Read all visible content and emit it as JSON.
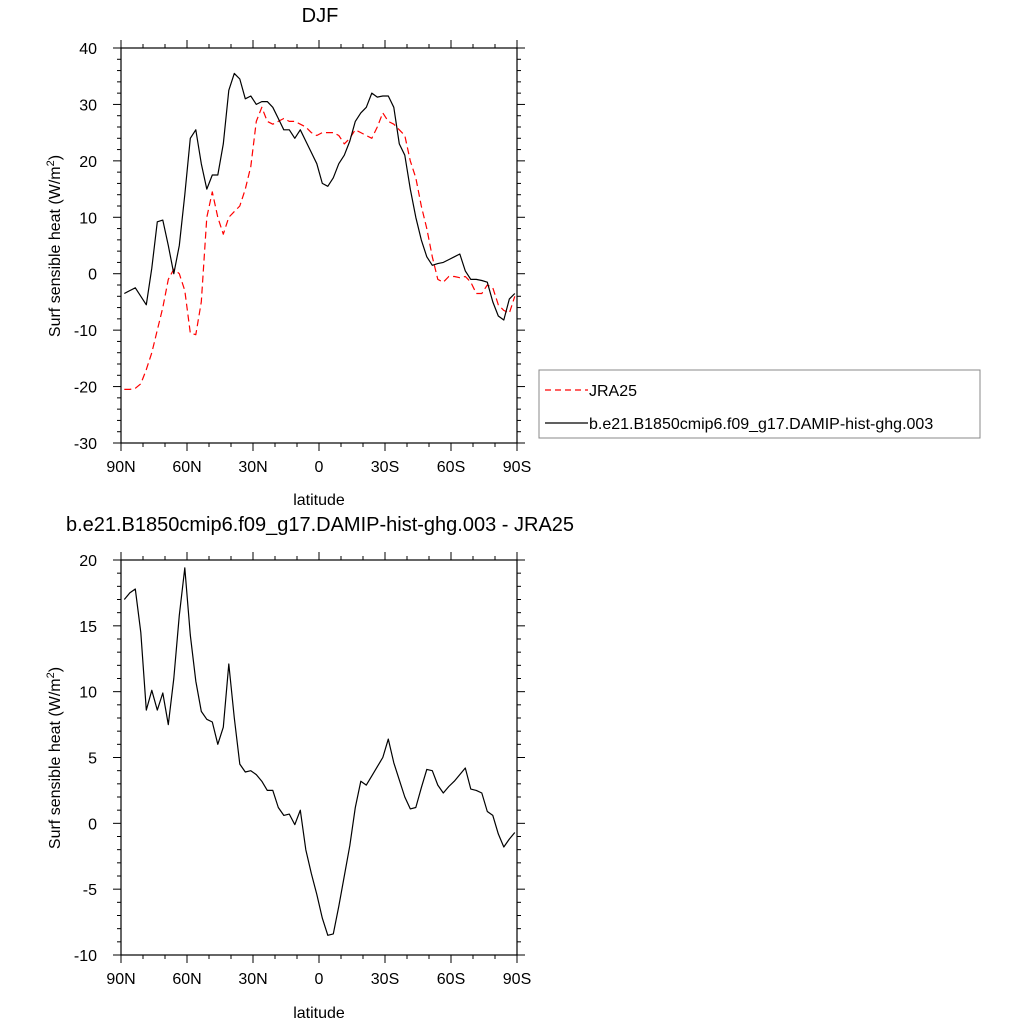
{
  "chart_data": [
    {
      "type": "line",
      "title": "DJF",
      "xlabel": "latitude",
      "ylabel": "Surf sensible heat (W/m",
      "ylabel_sup": "2",
      "ylabel_end": ")",
      "xlim": [
        90,
        -90
      ],
      "ylim": [
        -30,
        40
      ],
      "xticks": [
        90,
        60,
        30,
        0,
        -30,
        -60,
        -90
      ],
      "xtick_labels": [
        "90N",
        "60N",
        "30N",
        "0",
        "30S",
        "60S",
        "90S"
      ],
      "yticks": [
        -30,
        -20,
        -10,
        0,
        10,
        20,
        30,
        40
      ],
      "ytick_labels": [
        "-30",
        "-20",
        "-10",
        "0",
        "10",
        "20",
        "30",
        "40"
      ],
      "grid": false,
      "legend_position": "outside-right",
      "series": [
        {
          "name": "JRA25",
          "color": "#ff0000",
          "dash": "dashed",
          "x": [
            88.5,
            86,
            83.5,
            81,
            78.5,
            76,
            73.5,
            71,
            68.5,
            66,
            63.5,
            61,
            58.5,
            56,
            53.5,
            51,
            48.5,
            46,
            43.5,
            41,
            38.5,
            36,
            33.5,
            31,
            28.5,
            26,
            23.5,
            21,
            18.5,
            16,
            13.5,
            11,
            8.5,
            6,
            3.5,
            1,
            -1.5,
            -4,
            -6.5,
            -9,
            -11.5,
            -14,
            -16.5,
            -19,
            -21.5,
            -24,
            -26.5,
            -29,
            -31.5,
            -34,
            -36.5,
            -39,
            -41.5,
            -44,
            -46.5,
            -49,
            -51.5,
            -54,
            -56.5,
            -59,
            -61.5,
            -64,
            -66.5,
            -69,
            -71.5,
            -74,
            -76.5,
            -79,
            -81.5,
            -84,
            -86.5,
            -89
          ],
          "y": [
            -20.5,
            -20.5,
            -20.3,
            -19.5,
            -17,
            -14,
            -10,
            -6,
            -1,
            0.8,
            0,
            -3,
            -10.5,
            -10.8,
            -5,
            10,
            14.5,
            10,
            7,
            10,
            11,
            12,
            15,
            19,
            27,
            29.5,
            27,
            26.5,
            27,
            27.5,
            27,
            27,
            26.5,
            26,
            25,
            24.5,
            25,
            25,
            25,
            24.5,
            23,
            24,
            25.5,
            25,
            24.5,
            24,
            26,
            28.5,
            27,
            26.5,
            25.5,
            24.5,
            20,
            17,
            12,
            8,
            3,
            -1,
            -1.5,
            -0.5,
            -0.5,
            -0.7,
            -0.5,
            -1.5,
            -3.5,
            -3.5,
            -2,
            -2.5,
            -5.5,
            -6.5,
            -7,
            -4
          ]
        },
        {
          "name": "b.e21.B1850cmip6.f09_g17.DAMIP-hist-ghg.003",
          "color": "#000000",
          "dash": "solid",
          "x": [
            88.5,
            86,
            83.5,
            81,
            78.5,
            76,
            73.5,
            71,
            68.5,
            66,
            63.5,
            61,
            58.5,
            56,
            53.5,
            51,
            48.5,
            46,
            43.5,
            41,
            38.5,
            36,
            33.5,
            31,
            28.5,
            26,
            23.5,
            21,
            18.5,
            16,
            13.5,
            11,
            8.5,
            6,
            3.5,
            1,
            -1.5,
            -4,
            -6.5,
            -9,
            -11.5,
            -14,
            -16.5,
            -19,
            -21.5,
            -24,
            -26.5,
            -29,
            -31.5,
            -34,
            -36.5,
            -39,
            -41.5,
            -44,
            -46.5,
            -49,
            -51.5,
            -54,
            -56.5,
            -59,
            -61.5,
            -64,
            -66.5,
            -69,
            -71.5,
            -74,
            -76.5,
            -79,
            -81.5,
            -84,
            -86.5,
            -89
          ],
          "y": [
            -3.5,
            -3,
            -2.5,
            -4,
            -5.5,
            1,
            9.2,
            9.5,
            5,
            0,
            5,
            14,
            24,
            25.5,
            19.5,
            15,
            17.5,
            17.5,
            23,
            32.5,
            35.5,
            34.5,
            31,
            31.5,
            30,
            30.5,
            30.5,
            29.5,
            27.5,
            25.5,
            25.5,
            24,
            25.5,
            23.5,
            21.5,
            19.5,
            16,
            15.5,
            17,
            19.5,
            21,
            23.5,
            27,
            28.5,
            29.5,
            32,
            31.3,
            31.5,
            31.5,
            29.5,
            23,
            21,
            15,
            10,
            6,
            3,
            1.5,
            1.8,
            2,
            2.5,
            3,
            3.5,
            0.5,
            -1,
            -1,
            -1.2,
            -1.5,
            -5,
            -7.5,
            -8.2,
            -4.5,
            -3.5
          ]
        }
      ]
    },
    {
      "type": "line",
      "title": "b.e21.B1850cmip6.f09_g17.DAMIP-hist-ghg.003 - JRA25",
      "xlabel": "latitude",
      "ylabel": "Surf sensible heat (W/m",
      "ylabel_sup": "2",
      "ylabel_end": ")",
      "xlim": [
        90,
        -90
      ],
      "ylim": [
        -10,
        20
      ],
      "xticks": [
        90,
        60,
        30,
        0,
        -30,
        -60,
        -90
      ],
      "xtick_labels": [
        "90N",
        "60N",
        "30N",
        "0",
        "30S",
        "60S",
        "90S"
      ],
      "yticks": [
        -10,
        -5,
        0,
        5,
        10,
        15,
        20
      ],
      "ytick_labels": [
        "-10",
        "-5",
        "0",
        "5",
        "10",
        "15",
        "20"
      ],
      "grid": false,
      "series": [
        {
          "name": "",
          "color": "#000000",
          "dash": "solid",
          "x": [
            88.5,
            86,
            83.5,
            81,
            78.5,
            76,
            73.5,
            71,
            68.5,
            66,
            63.5,
            61,
            58.5,
            56,
            53.5,
            51,
            48.5,
            46,
            43.5,
            41,
            38.5,
            36,
            33.5,
            31,
            28.5,
            26,
            23.5,
            21,
            18.5,
            16,
            13.5,
            11,
            8.5,
            6,
            3.5,
            1,
            -1.5,
            -4,
            -6.5,
            -9,
            -11.5,
            -14,
            -16.5,
            -19,
            -21.5,
            -24,
            -26.5,
            -29,
            -31.5,
            -34,
            -36.5,
            -39,
            -41.5,
            -44,
            -46.5,
            -49,
            -51.5,
            -54,
            -56.5,
            -59,
            -61.5,
            -64,
            -66.5,
            -69,
            -71.5,
            -74,
            -76.5,
            -79,
            -81.5,
            -84,
            -86.5,
            -89
          ],
          "y": [
            17,
            17.5,
            17.8,
            14.5,
            8.6,
            10.1,
            8.6,
            9.9,
            7.5,
            11,
            15.8,
            19.4,
            14.3,
            10.8,
            8.5,
            7.9,
            7.7,
            6,
            7.3,
            12.1,
            8,
            4.5,
            3.9,
            4,
            3.7,
            3.2,
            2.5,
            2.5,
            1.2,
            0.6,
            0.7,
            -0.1,
            1,
            -2,
            -3.8,
            -5.4,
            -7.2,
            -8.5,
            -8.4,
            -6.3,
            -4,
            -1.7,
            1.2,
            3.2,
            2.9,
            3.6,
            4.3,
            5,
            6.4,
            4.6,
            3.3,
            2,
            1.1,
            1.2,
            2.7,
            4.1,
            4,
            2.9,
            2.3,
            2.8,
            3.2,
            3.7,
            4.2,
            2.6,
            2.5,
            2.3,
            0.9,
            0.6,
            -0.8,
            -1.8,
            -1.2,
            -0.7
          ]
        }
      ]
    }
  ]
}
